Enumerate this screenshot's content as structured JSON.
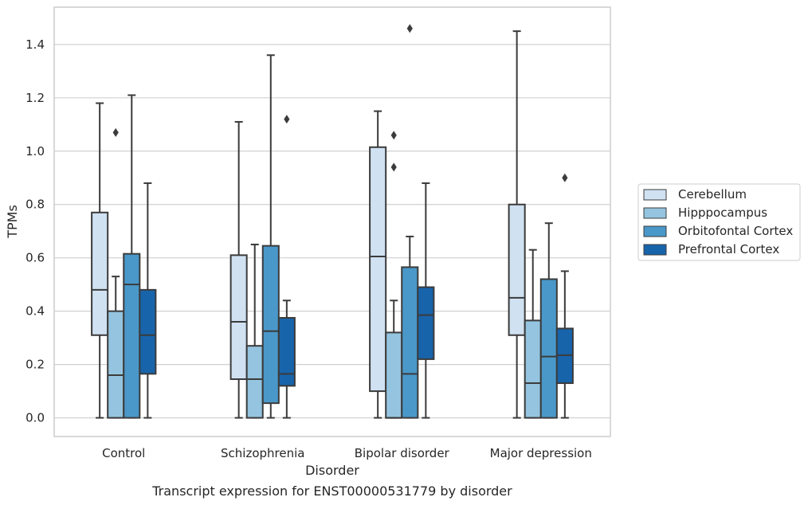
{
  "chart_data": {
    "type": "box",
    "xlabel": "Disorder",
    "ylabel": "TPMs",
    "caption": "Transcript expression for ENST00000531779 by disorder",
    "categories": [
      "Control",
      "Schizophrenia",
      "Bipolar disorder",
      "Major depression"
    ],
    "ylim": [
      -0.07,
      1.54
    ],
    "yticks": [
      "0.0",
      "0.2",
      "0.4",
      "0.6",
      "0.8",
      "1.0",
      "1.2",
      "1.4"
    ],
    "ytick_values": [
      0,
      0.2,
      0.4,
      0.6,
      0.8,
      1.0,
      1.2,
      1.4
    ],
    "grid": true,
    "legend_position": "right",
    "series": [
      {
        "name": "Cerebellum",
        "color": "#d0e1f2",
        "boxes": [
          {
            "whislo": 0,
            "q1": 0.31,
            "med": 0.48,
            "q3": 0.77,
            "whishi": 1.18,
            "fliers": []
          },
          {
            "whislo": 0,
            "q1": 0.145,
            "med": 0.36,
            "q3": 0.61,
            "whishi": 1.11,
            "fliers": []
          },
          {
            "whislo": 0,
            "q1": 0.1,
            "med": 0.605,
            "q3": 1.015,
            "whishi": 1.15,
            "fliers": []
          },
          {
            "whislo": 0,
            "q1": 0.31,
            "med": 0.45,
            "q3": 0.8,
            "whishi": 1.45,
            "fliers": []
          }
        ]
      },
      {
        "name": "Hipppocampus",
        "color": "#94c4df",
        "boxes": [
          {
            "whislo": 0,
            "q1": 0,
            "med": 0.16,
            "q3": 0.4,
            "whishi": 0.53,
            "fliers": [
              1.07
            ]
          },
          {
            "whislo": 0,
            "q1": 0,
            "med": 0.145,
            "q3": 0.27,
            "whishi": 0.65,
            "fliers": []
          },
          {
            "whislo": 0,
            "q1": 0,
            "med": 0,
            "q3": 0.32,
            "whishi": 0.44,
            "fliers": [
              0.94,
              1.06
            ]
          },
          {
            "whislo": 0,
            "q1": 0,
            "med": 0.13,
            "q3": 0.365,
            "whishi": 0.63,
            "fliers": []
          }
        ]
      },
      {
        "name": "Orbitofontal Cortex",
        "color": "#4a98c9",
        "boxes": [
          {
            "whislo": 0,
            "q1": 0,
            "med": 0.5,
            "q3": 0.615,
            "whishi": 1.21,
            "fliers": []
          },
          {
            "whislo": 0,
            "q1": 0.055,
            "med": 0.325,
            "q3": 0.645,
            "whishi": 1.36,
            "fliers": []
          },
          {
            "whislo": 0,
            "q1": 0,
            "med": 0.165,
            "q3": 0.565,
            "whishi": 0.68,
            "fliers": [
              1.46
            ]
          },
          {
            "whislo": 0,
            "q1": 0,
            "med": 0.23,
            "q3": 0.52,
            "whishi": 0.73,
            "fliers": []
          }
        ]
      },
      {
        "name": "Prefrontal Cortex",
        "color": "#1764ab",
        "boxes": [
          {
            "whislo": 0,
            "q1": 0.165,
            "med": 0.31,
            "q3": 0.48,
            "whishi": 0.88,
            "fliers": []
          },
          {
            "whislo": 0,
            "q1": 0.12,
            "med": 0.165,
            "q3": 0.375,
            "whishi": 0.44,
            "fliers": [
              1.12
            ]
          },
          {
            "whislo": 0,
            "q1": 0.22,
            "med": 0.385,
            "q3": 0.49,
            "whishi": 0.88,
            "fliers": []
          },
          {
            "whislo": 0,
            "q1": 0.13,
            "med": 0.235,
            "q3": 0.335,
            "whishi": 0.55,
            "fliers": [
              0.9
            ]
          }
        ]
      }
    ]
  }
}
